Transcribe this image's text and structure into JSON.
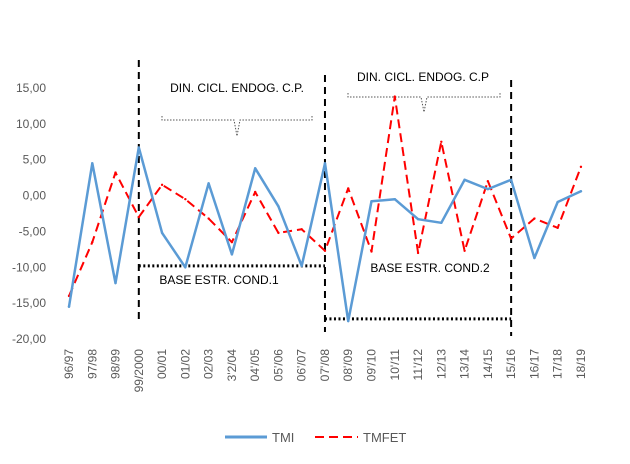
{
  "chart_data": {
    "type": "line",
    "title": "",
    "xlabel": "",
    "ylabel": "",
    "ylim": [
      -20,
      15
    ],
    "yticks": [
      -20,
      -15,
      -10,
      -5,
      0,
      5,
      10,
      15
    ],
    "ytick_labels": [
      "-20,00",
      "-15,00",
      "-10,00",
      "-5,00",
      "0,00",
      "5,00",
      "10,00",
      "15,00"
    ],
    "grid": false,
    "legend": "bottom",
    "categories": [
      "96/97",
      "97/98",
      "98/99",
      "99/2000",
      "00/01",
      "01/02",
      "02/03",
      "3'2/04",
      "04'/05",
      "05'/06",
      "06'/07",
      "07'/08",
      "08'/09",
      "09'/10",
      "10'/11",
      "11'/12",
      "12/13",
      "13/14",
      "14/15",
      "15/16",
      "16/17",
      "17/18",
      "18/19"
    ],
    "series": [
      {
        "name": "TMI",
        "color": "#5b9bd5",
        "style": "solid",
        "values": [
          -15.5,
          4.5,
          -12.2,
          6.7,
          -5.2,
          -10.0,
          1.7,
          -8.2,
          3.8,
          -1.5,
          -9.8,
          4.5,
          -17.5,
          -0.8,
          -0.5,
          -3.3,
          -3.8,
          2.2,
          0.9,
          2.2,
          -8.7,
          -0.9,
          0.6
        ]
      },
      {
        "name": "TMFET",
        "color": "#ff0000",
        "style": "dashed",
        "values": [
          -14.0,
          -6.5,
          3.2,
          -3.0,
          1.5,
          -0.5,
          -3.2,
          -6.5,
          0.5,
          -5.2,
          -4.7,
          -7.7,
          1.0,
          -7.8,
          13.8,
          -8.0,
          7.5,
          -7.7,
          2.0,
          -6.0,
          -3.2,
          -4.5,
          4.0
        ]
      }
    ],
    "annotations": {
      "top_left": "DIN. CICL. ENDOG. C.P.",
      "top_right": "DIN. CICL. ENDOG. C.P",
      "base_1": "BASE ESTR. COND.1",
      "base_2": "BASE ESTR. COND.2"
    },
    "annotation_lines": {
      "separators_at": [
        3,
        11,
        19
      ],
      "base_1": {
        "from": 3,
        "to": 11,
        "y": -9.8
      },
      "base_2": {
        "from": 11,
        "to": 19,
        "y": -17.2
      }
    }
  }
}
